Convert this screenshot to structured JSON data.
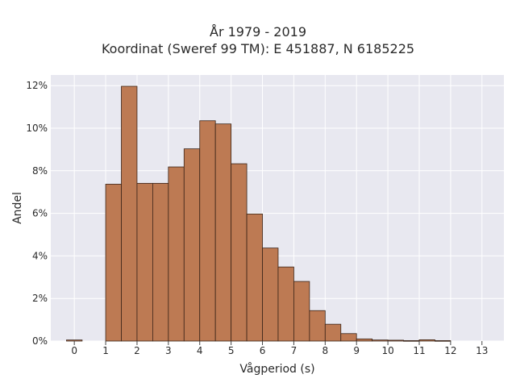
{
  "chart_data": {
    "type": "bar",
    "title": "År 1979 - 2019",
    "subtitle": "Koordinat (Sweref 99 TM): E 451887, N 6185225",
    "xlabel": "Vågperiod (s)",
    "ylabel": "Andel",
    "xlim": [
      -0.75,
      13.7
    ],
    "ylim": [
      0,
      0.125
    ],
    "x_ticks": [
      0,
      1,
      2,
      3,
      4,
      5,
      6,
      7,
      8,
      9,
      10,
      11,
      12,
      13
    ],
    "y_ticks": [
      0,
      0.02,
      0.04,
      0.06,
      0.08,
      0.1,
      0.12
    ],
    "y_tick_labels": [
      "0%",
      "2%",
      "4%",
      "6%",
      "8%",
      "10%",
      "12%"
    ],
    "grid": true,
    "bin_width": 0.5,
    "bins": [
      {
        "start": -0.25,
        "value": 0.0005
      },
      {
        "start": 1.0,
        "value": 0.0737
      },
      {
        "start": 1.5,
        "value": 0.1197
      },
      {
        "start": 2.0,
        "value": 0.0741
      },
      {
        "start": 2.5,
        "value": 0.0741
      },
      {
        "start": 3.0,
        "value": 0.0818
      },
      {
        "start": 3.5,
        "value": 0.0903
      },
      {
        "start": 4.0,
        "value": 0.1035
      },
      {
        "start": 4.5,
        "value": 0.102
      },
      {
        "start": 5.0,
        "value": 0.0833
      },
      {
        "start": 5.5,
        "value": 0.0597
      },
      {
        "start": 6.0,
        "value": 0.0437
      },
      {
        "start": 6.5,
        "value": 0.0348
      },
      {
        "start": 7.0,
        "value": 0.028
      },
      {
        "start": 7.5,
        "value": 0.0143
      },
      {
        "start": 8.0,
        "value": 0.0079
      },
      {
        "start": 8.5,
        "value": 0.0035
      },
      {
        "start": 9.0,
        "value": 0.001
      },
      {
        "start": 9.5,
        "value": 0.0005
      },
      {
        "start": 10.0,
        "value": 0.0004
      },
      {
        "start": 10.5,
        "value": 0.0002
      },
      {
        "start": 11.0,
        "value": 0.0006
      },
      {
        "start": 11.5,
        "value": 0.0002
      }
    ],
    "colors": {
      "bar_fill": "#bd7a53",
      "bar_stroke": "#3a2418",
      "plot_background": "#e8e8f0",
      "grid": "#ffffff"
    }
  }
}
